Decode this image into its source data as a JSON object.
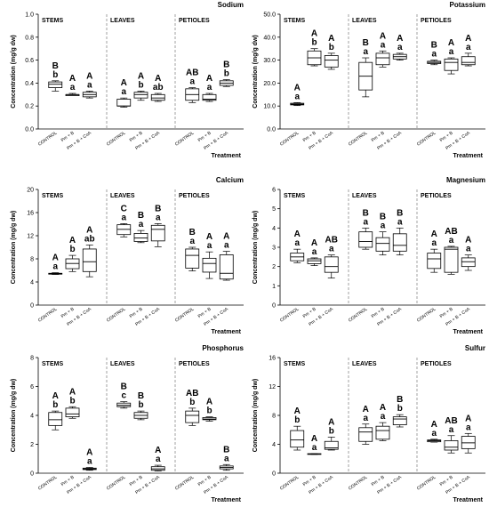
{
  "chart_data": [
    {
      "type": "box",
      "title": "Sodium",
      "ylabel": "Concentration (mg/g dw)",
      "xlabel": "Treatment",
      "ylim": [
        0,
        1
      ],
      "yticks": [
        "0.0",
        "0.2",
        "0.4",
        "0.6",
        "0.8",
        "1.0"
      ],
      "tick_values": [
        0,
        0.2,
        0.4,
        0.6,
        0.8,
        1.0
      ],
      "groups": [
        "STEMS",
        "LEAVES",
        "PETIOLES"
      ],
      "categories": [
        "CONTROL",
        "Pm + B",
        "Pm + B + CoA"
      ],
      "boxes": [
        {
          "group": "STEMS",
          "category": "CONTROL",
          "min": 0.33,
          "q1": 0.36,
          "median": 0.39,
          "q3": 0.41,
          "max": 0.42,
          "letters": [
            "B",
            "b"
          ]
        },
        {
          "group": "STEMS",
          "category": "Pm + B",
          "min": 0.29,
          "q1": 0.29,
          "median": 0.3,
          "q3": 0.3,
          "max": 0.31,
          "letters": [
            "A",
            "a"
          ]
        },
        {
          "group": "STEMS",
          "category": "Pm + B + CoA",
          "min": 0.27,
          "q1": 0.28,
          "median": 0.3,
          "q3": 0.32,
          "max": 0.33,
          "letters": [
            "A",
            "a"
          ]
        },
        {
          "group": "LEAVES",
          "category": "CONTROL",
          "min": 0.19,
          "q1": 0.2,
          "median": 0.2,
          "q3": 0.26,
          "max": 0.27,
          "letters": [
            "A",
            "a"
          ]
        },
        {
          "group": "LEAVES",
          "category": "Pm + B",
          "min": 0.25,
          "q1": 0.27,
          "median": 0.3,
          "q3": 0.32,
          "max": 0.33,
          "letters": [
            "A",
            "b"
          ]
        },
        {
          "group": "LEAVES",
          "category": "Pm + B + CoA",
          "min": 0.24,
          "q1": 0.25,
          "median": 0.27,
          "q3": 0.3,
          "max": 0.31,
          "letters": [
            "A",
            "ab"
          ]
        },
        {
          "group": "PETIOLES",
          "category": "CONTROL",
          "min": 0.23,
          "q1": 0.25,
          "median": 0.3,
          "q3": 0.35,
          "max": 0.36,
          "letters": [
            "AB",
            "a"
          ]
        },
        {
          "group": "PETIOLES",
          "category": "Pm + B",
          "min": 0.24,
          "q1": 0.25,
          "median": 0.26,
          "q3": 0.3,
          "max": 0.31,
          "letters": [
            "A",
            "a"
          ]
        },
        {
          "group": "PETIOLES",
          "category": "Pm + B + CoA",
          "min": 0.37,
          "q1": 0.38,
          "median": 0.4,
          "q3": 0.42,
          "max": 0.43,
          "letters": [
            "B",
            "b"
          ]
        }
      ]
    },
    {
      "type": "box",
      "title": "Potassium",
      "ylabel": "Concentration (mg/g dw)",
      "xlabel": "Treatment",
      "ylim": [
        0,
        50
      ],
      "yticks": [
        "0.0",
        "10.0",
        "20.0",
        "30.0",
        "40.0",
        "50.0"
      ],
      "tick_values": [
        0,
        10,
        20,
        30,
        40,
        50
      ],
      "groups": [
        "STEMS",
        "LEAVES",
        "PETIOLES"
      ],
      "categories": [
        "CONTROL",
        "Pm + B",
        "Pm + B + CoA"
      ],
      "boxes": [
        {
          "group": "STEMS",
          "category": "CONTROL",
          "min": 10.2,
          "q1": 10.5,
          "median": 10.8,
          "q3": 11.2,
          "max": 11.5,
          "letters": [
            "A",
            "a"
          ]
        },
        {
          "group": "STEMS",
          "category": "Pm + B",
          "min": 27.5,
          "q1": 28,
          "median": 31,
          "q3": 34,
          "max": 35,
          "letters": [
            "A",
            "b"
          ]
        },
        {
          "group": "STEMS",
          "category": "Pm + B + CoA",
          "min": 26,
          "q1": 27,
          "median": 30,
          "q3": 32,
          "max": 33,
          "letters": [
            "A",
            "b"
          ]
        },
        {
          "group": "LEAVES",
          "category": "CONTROL",
          "min": 14,
          "q1": 17,
          "median": 23,
          "q3": 29,
          "max": 31,
          "letters": [
            "B",
            "a"
          ]
        },
        {
          "group": "LEAVES",
          "category": "Pm + B",
          "min": 27,
          "q1": 28,
          "median": 31,
          "q3": 33,
          "max": 34,
          "letters": [
            "A",
            "a"
          ]
        },
        {
          "group": "LEAVES",
          "category": "Pm + B + CoA",
          "min": 30,
          "q1": 30.5,
          "median": 31.5,
          "q3": 32.5,
          "max": 33,
          "letters": [
            "A",
            "a"
          ]
        },
        {
          "group": "PETIOLES",
          "category": "CONTROL",
          "min": 28,
          "q1": 28.5,
          "median": 29,
          "q3": 29.5,
          "max": 30,
          "letters": [
            "B",
            "a"
          ]
        },
        {
          "group": "PETIOLES",
          "category": "Pm + B",
          "min": 24,
          "q1": 25.5,
          "median": 29,
          "q3": 30.5,
          "max": 31,
          "letters": [
            "A",
            "a"
          ]
        },
        {
          "group": "PETIOLES",
          "category": "Pm + B + CoA",
          "min": 27.5,
          "q1": 28,
          "median": 29,
          "q3": 31.5,
          "max": 33,
          "letters": [
            "A",
            "a"
          ]
        }
      ]
    },
    {
      "type": "box",
      "title": "Calcium",
      "ylabel": "Concentration (mg/g dw)",
      "xlabel": "Treatment",
      "ylim": [
        0,
        20
      ],
      "yticks": [
        "0",
        "4",
        "8",
        "12",
        "16",
        "20"
      ],
      "tick_values": [
        0,
        4,
        8,
        12,
        16,
        20
      ],
      "groups": [
        "STEMS",
        "LEAVES",
        "PETIOLES"
      ],
      "categories": [
        "CONTROL",
        "Pm + B",
        "Pm + B + CoA"
      ],
      "boxes": [
        {
          "group": "STEMS",
          "category": "CONTROL",
          "min": 5.3,
          "q1": 5.35,
          "median": 5.45,
          "q3": 5.5,
          "max": 5.6,
          "letters": [
            "A",
            "a"
          ]
        },
        {
          "group": "STEMS",
          "category": "Pm + B",
          "min": 5.8,
          "q1": 6.3,
          "median": 7.2,
          "q3": 8.0,
          "max": 8.6,
          "letters": [
            "A",
            "b"
          ]
        },
        {
          "group": "STEMS",
          "category": "Pm + B + CoA",
          "min": 4.9,
          "q1": 5.8,
          "median": 7.5,
          "q3": 9.7,
          "max": 10.4,
          "letters": [
            "A",
            "ab"
          ]
        },
        {
          "group": "LEAVES",
          "category": "CONTROL",
          "min": 11.8,
          "q1": 12.2,
          "median": 13.1,
          "q3": 13.9,
          "max": 14.1,
          "letters": [
            "C",
            "a"
          ]
        },
        {
          "group": "LEAVES",
          "category": "Pm + B",
          "min": 10.8,
          "q1": 11.0,
          "median": 11.6,
          "q3": 12.4,
          "max": 12.9,
          "letters": [
            "B",
            "a"
          ]
        },
        {
          "group": "LEAVES",
          "category": "Pm + B + CoA",
          "min": 10.1,
          "q1": 11.1,
          "median": 13.1,
          "q3": 13.8,
          "max": 14.1,
          "letters": [
            "B",
            "a"
          ]
        },
        {
          "group": "PETIOLES",
          "category": "CONTROL",
          "min": 5.9,
          "q1": 6.4,
          "median": 8.6,
          "q3": 9.7,
          "max": 10.0,
          "letters": [
            "B",
            "a"
          ]
        },
        {
          "group": "PETIOLES",
          "category": "Pm + B",
          "min": 4.6,
          "q1": 5.7,
          "median": 7.2,
          "q3": 8.1,
          "max": 9.2,
          "letters": [
            "A",
            "a"
          ]
        },
        {
          "group": "PETIOLES",
          "category": "Pm + B + CoA",
          "min": 4.3,
          "q1": 4.5,
          "median": 5.5,
          "q3": 8.7,
          "max": 9.3,
          "letters": [
            "A",
            "a"
          ]
        }
      ]
    },
    {
      "type": "box",
      "title": "Magnesium",
      "ylabel": "Concentration (mg/g dw)",
      "xlabel": "Treatment",
      "ylim": [
        0,
        6
      ],
      "yticks": [
        "0",
        "1",
        "2",
        "3",
        "4",
        "5",
        "6"
      ],
      "tick_values": [
        0,
        1,
        2,
        3,
        4,
        5,
        6
      ],
      "groups": [
        "STEMS",
        "LEAVES",
        "PETIOLES"
      ],
      "categories": [
        "CONTROL",
        "Pm + B",
        "Pm + B + CoA"
      ],
      "boxes": [
        {
          "group": "STEMS",
          "category": "CONTROL",
          "min": 2.2,
          "q1": 2.3,
          "median": 2.5,
          "q3": 2.7,
          "max": 2.9,
          "letters": [
            "A",
            "a"
          ]
        },
        {
          "group": "STEMS",
          "category": "Pm + B",
          "min": 2.05,
          "q1": 2.15,
          "median": 2.3,
          "q3": 2.4,
          "max": 2.45,
          "letters": [
            "A",
            "a"
          ]
        },
        {
          "group": "STEMS",
          "category": "Pm + B + CoA",
          "min": 1.4,
          "q1": 1.7,
          "median": 2.0,
          "q3": 2.5,
          "max": 2.6,
          "letters": [
            "AB",
            "a"
          ]
        },
        {
          "group": "LEAVES",
          "category": "CONTROL",
          "min": 2.9,
          "q1": 3.0,
          "median": 3.3,
          "q3": 3.8,
          "max": 4.0,
          "letters": [
            "B",
            "a"
          ]
        },
        {
          "group": "LEAVES",
          "category": "Pm + B",
          "min": 2.6,
          "q1": 2.8,
          "median": 3.2,
          "q3": 3.5,
          "max": 3.8,
          "letters": [
            "B",
            "a"
          ]
        },
        {
          "group": "LEAVES",
          "category": "Pm + B + CoA",
          "min": 2.6,
          "q1": 2.8,
          "median": 3.1,
          "q3": 3.7,
          "max": 4.0,
          "letters": [
            "B",
            "a"
          ]
        },
        {
          "group": "PETIOLES",
          "category": "CONTROL",
          "min": 1.7,
          "q1": 1.9,
          "median": 2.4,
          "q3": 2.7,
          "max": 2.9,
          "letters": [
            "A",
            "a"
          ]
        },
        {
          "group": "PETIOLES",
          "category": "Pm + B",
          "min": 1.6,
          "q1": 1.7,
          "median": 2.9,
          "q3": 3.0,
          "max": 3.05,
          "letters": [
            "AB",
            "a"
          ]
        },
        {
          "group": "PETIOLES",
          "category": "Pm + B + CoA",
          "min": 1.8,
          "q1": 2.0,
          "median": 2.25,
          "q3": 2.45,
          "max": 2.6,
          "letters": [
            "A",
            "a"
          ]
        }
      ]
    },
    {
      "type": "box",
      "title": "Phosphorus",
      "ylabel": "Concentration (mg/g dw)",
      "xlabel": "Treatment",
      "ylim": [
        0,
        8
      ],
      "yticks": [
        "0",
        "2",
        "4",
        "6",
        "8"
      ],
      "tick_values": [
        0,
        2,
        4,
        6,
        8
      ],
      "groups": [
        "STEMS",
        "LEAVES",
        "PETIOLES"
      ],
      "categories": [
        "CONTROL",
        "Pm + B",
        "Pm + B + CoA"
      ],
      "boxes": [
        {
          "group": "STEMS",
          "category": "CONTROL",
          "min": 3.0,
          "q1": 3.3,
          "median": 3.7,
          "q3": 4.2,
          "max": 4.3,
          "letters": [
            "A",
            "b"
          ]
        },
        {
          "group": "STEMS",
          "category": "Pm + B",
          "min": 3.8,
          "q1": 3.9,
          "median": 4.1,
          "q3": 4.5,
          "max": 4.6,
          "letters": [
            "A",
            "b"
          ]
        },
        {
          "group": "STEMS",
          "category": "Pm + B + CoA",
          "min": 0.2,
          "q1": 0.25,
          "median": 0.3,
          "q3": 0.35,
          "max": 0.4,
          "letters": [
            "A",
            "a"
          ]
        },
        {
          "group": "LEAVES",
          "category": "CONTROL",
          "min": 4.5,
          "q1": 4.6,
          "median": 4.7,
          "q3": 4.85,
          "max": 4.95,
          "letters": [
            "B",
            "c"
          ]
        },
        {
          "group": "LEAVES",
          "category": "Pm + B",
          "min": 3.7,
          "q1": 3.8,
          "median": 4.0,
          "q3": 4.2,
          "max": 4.3,
          "letters": [
            "B",
            "b"
          ]
        },
        {
          "group": "LEAVES",
          "category": "Pm + B + CoA",
          "min": 0.15,
          "q1": 0.2,
          "median": 0.3,
          "q3": 0.45,
          "max": 0.55,
          "letters": [
            "A",
            "a"
          ]
        },
        {
          "group": "PETIOLES",
          "category": "CONTROL",
          "min": 3.3,
          "q1": 3.5,
          "median": 4.0,
          "q3": 4.3,
          "max": 4.5,
          "letters": [
            "AB",
            "b"
          ]
        },
        {
          "group": "PETIOLES",
          "category": "Pm + B",
          "min": 3.6,
          "q1": 3.7,
          "median": 3.75,
          "q3": 3.85,
          "max": 3.9,
          "letters": [
            "A",
            "b"
          ]
        },
        {
          "group": "PETIOLES",
          "category": "Pm + B + CoA",
          "min": 0.2,
          "q1": 0.3,
          "median": 0.4,
          "q3": 0.5,
          "max": 0.6,
          "letters": [
            "B",
            "a"
          ]
        }
      ]
    },
    {
      "type": "box",
      "title": "Sulfur",
      "ylabel": "Concentration (mg/g dw)",
      "xlabel": "Treatment",
      "ylim": [
        0,
        16
      ],
      "yticks": [
        "0",
        "4",
        "8",
        "12",
        "16"
      ],
      "tick_values": [
        0,
        4,
        8,
        12,
        16
      ],
      "groups": [
        "STEMS",
        "LEAVES",
        "PETIOLES"
      ],
      "categories": [
        "CONTROL",
        "Pm + B",
        "Pm + B + CoA"
      ],
      "boxes": [
        {
          "group": "STEMS",
          "category": "CONTROL",
          "min": 3.2,
          "q1": 3.6,
          "median": 4.6,
          "q3": 5.9,
          "max": 6.5,
          "letters": [
            "A",
            "b"
          ]
        },
        {
          "group": "STEMS",
          "category": "Pm + B",
          "min": 2.6,
          "q1": 2.6,
          "median": 2.65,
          "q3": 2.7,
          "max": 2.7,
          "letters": [
            "A",
            "a"
          ]
        },
        {
          "group": "STEMS",
          "category": "Pm + B + CoA",
          "min": 3.2,
          "q1": 3.3,
          "median": 3.5,
          "q3": 4.4,
          "max": 5.0,
          "letters": [
            "A",
            "b"
          ]
        },
        {
          "group": "LEAVES",
          "category": "CONTROL",
          "min": 4.0,
          "q1": 4.4,
          "median": 5.7,
          "q3": 6.3,
          "max": 6.8,
          "letters": [
            "A",
            "a"
          ]
        },
        {
          "group": "LEAVES",
          "category": "Pm + B",
          "min": 4.5,
          "q1": 4.7,
          "median": 5.9,
          "q3": 6.5,
          "max": 7.0,
          "letters": [
            "A",
            "a"
          ]
        },
        {
          "group": "LEAVES",
          "category": "Pm + B + CoA",
          "min": 6.4,
          "q1": 6.7,
          "median": 7.5,
          "q3": 7.8,
          "max": 8.1,
          "letters": [
            "B",
            "b"
          ]
        },
        {
          "group": "PETIOLES",
          "category": "CONTROL",
          "min": 4.3,
          "q1": 4.35,
          "median": 4.5,
          "q3": 4.6,
          "max": 4.7,
          "letters": [
            "A",
            "a"
          ]
        },
        {
          "group": "PETIOLES",
          "category": "Pm + B",
          "min": 2.8,
          "q1": 3.2,
          "median": 3.6,
          "q3": 4.5,
          "max": 5.2,
          "letters": [
            "AB",
            "a"
          ]
        },
        {
          "group": "PETIOLES",
          "category": "Pm + B + CoA",
          "min": 2.8,
          "q1": 3.4,
          "median": 4.2,
          "q3": 5.1,
          "max": 5.5,
          "letters": [
            "A",
            "a"
          ]
        }
      ]
    }
  ]
}
